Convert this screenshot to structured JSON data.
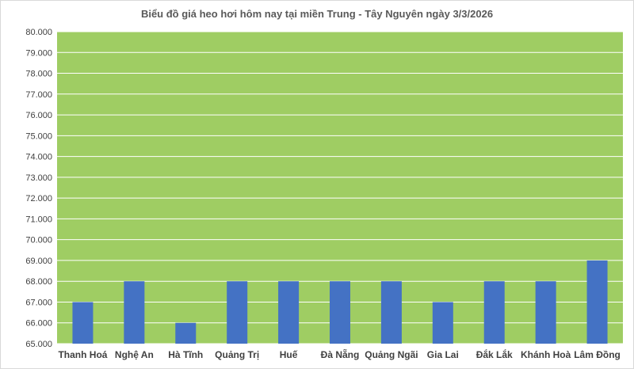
{
  "chart_data": {
    "type": "bar",
    "title": "Biểu đồ giá heo hơi hôm nay tại miền Trung - Tây Nguyên ngày 3/3/2026",
    "categories": [
      "Thanh Hoá",
      "Nghệ An",
      "Hà Tĩnh",
      "Quảng Trị",
      "Huế",
      "Đà Nẵng",
      "Quảng Ngãi",
      "Gia Lai",
      "Đắk Lắk",
      "Khánh Hoà",
      "Lâm Đồng"
    ],
    "values": [
      67000,
      68000,
      66000,
      68000,
      68000,
      68000,
      68000,
      67000,
      68000,
      68000,
      69000
    ],
    "ylim": [
      65000,
      80000
    ],
    "ytick_step": 1000,
    "ytick_labels": [
      "65.000",
      "66.000",
      "67.000",
      "68.000",
      "69.000",
      "70.000",
      "71.000",
      "72.000",
      "73.000",
      "74.000",
      "75.000",
      "76.000",
      "77.000",
      "78.000",
      "79.000",
      "80.000"
    ],
    "xlabel": "",
    "ylabel": "",
    "grid": true,
    "legend": "none",
    "colors": {
      "plot_background": "#9fcd63",
      "bar": "#4472c4",
      "gridline": "#ffffff"
    }
  }
}
